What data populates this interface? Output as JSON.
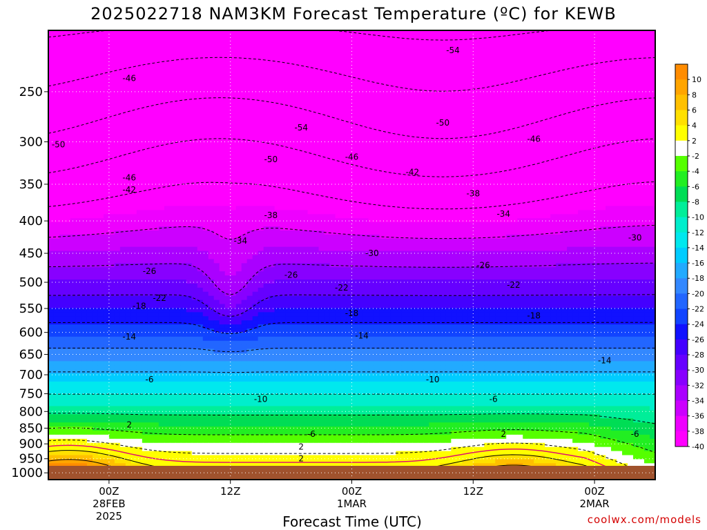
{
  "chart_data": {
    "type": "heatmap",
    "title": "2025022718 NAM3KM Forecast Temperature (ºC) for KEWB",
    "xlabel": "Forecast Time (UTC)",
    "ylabel": "",
    "credit": "coolwx.com/models",
    "y_axis": {
      "scale": "log-pressure",
      "reversed": true,
      "ticks": [
        250,
        300,
        350,
        400,
        450,
        500,
        550,
        600,
        650,
        700,
        750,
        800,
        850,
        900,
        950,
        1000
      ],
      "range": [
        200,
        1025
      ]
    },
    "x_axis": {
      "ticks": [
        {
          "line1": "00Z",
          "line2": "28FEB",
          "line3": "2025"
        },
        {
          "line1": "12Z",
          "line2": "",
          "line3": ""
        },
        {
          "line1": "00Z",
          "line2": "1MAR",
          "line3": ""
        },
        {
          "line1": "12Z",
          "line2": "",
          "line3": ""
        },
        {
          "line1": "00Z",
          "line2": "2MAR",
          "line3": ""
        }
      ],
      "range_hours": [
        -6,
        54
      ],
      "tick_hours": [
        0,
        12,
        24,
        36,
        48
      ]
    },
    "grid": true,
    "colorbar": {
      "levels": [
        10,
        8,
        6,
        4,
        2,
        -2,
        -4,
        -6,
        -8,
        -10,
        -12,
        -14,
        -16,
        -18,
        -20,
        -22,
        -24,
        -26,
        -28,
        -30,
        -32,
        -34,
        -36,
        -38,
        -40
      ],
      "colors": [
        "#ff8c00",
        "#ffa500",
        "#ffc000",
        "#ffe000",
        "#ffff00",
        "#ffffff",
        "#55ff00",
        "#22ee22",
        "#00dd55",
        "#00ee99",
        "#00eecc",
        "#00e8ee",
        "#00ccff",
        "#22aaff",
        "#3388ff",
        "#2266ff",
        "#1144ff",
        "#1111ff",
        "#4400ff",
        "#6600ff",
        "#8800ff",
        "#aa00ff",
        "#cc00ff",
        "#ee00ff",
        "#ff00ff"
      ]
    },
    "contour_labels": [
      {
        "text": "-54",
        "hour": 34,
        "pressure": 215
      },
      {
        "text": "-46",
        "hour": 2,
        "pressure": 238
      },
      {
        "text": "-54",
        "hour": 19,
        "pressure": 285
      },
      {
        "text": "-50",
        "hour": 33,
        "pressure": 280
      },
      {
        "text": "-46",
        "hour": 42,
        "pressure": 297
      },
      {
        "text": "-50",
        "hour": -5,
        "pressure": 303
      },
      {
        "text": "-50",
        "hour": 16,
        "pressure": 320
      },
      {
        "text": "-46",
        "hour": 24,
        "pressure": 317
      },
      {
        "text": "-42",
        "hour": 30,
        "pressure": 335
      },
      {
        "text": "-46",
        "hour": 2,
        "pressure": 342
      },
      {
        "text": "-42",
        "hour": 2,
        "pressure": 357
      },
      {
        "text": "-38",
        "hour": 36,
        "pressure": 362
      },
      {
        "text": "-38",
        "hour": 16,
        "pressure": 392
      },
      {
        "text": "-34",
        "hour": 39,
        "pressure": 390
      },
      {
        "text": "-34",
        "hour": 13,
        "pressure": 430
      },
      {
        "text": "-30",
        "hour": 52,
        "pressure": 425
      },
      {
        "text": "-30",
        "hour": 26,
        "pressure": 450
      },
      {
        "text": "-26",
        "hour": 37,
        "pressure": 470
      },
      {
        "text": "-26",
        "hour": 4,
        "pressure": 480
      },
      {
        "text": "-26",
        "hour": 18,
        "pressure": 487
      },
      {
        "text": "-22",
        "hour": 40,
        "pressure": 505
      },
      {
        "text": "-22",
        "hour": 23,
        "pressure": 510
      },
      {
        "text": "-22",
        "hour": 5,
        "pressure": 530
      },
      {
        "text": "-18",
        "hour": 3,
        "pressure": 545
      },
      {
        "text": "-18",
        "hour": 24,
        "pressure": 560
      },
      {
        "text": "-18",
        "hour": 42,
        "pressure": 565
      },
      {
        "text": "-14",
        "hour": 2,
        "pressure": 610
      },
      {
        "text": "-14",
        "hour": 25,
        "pressure": 607
      },
      {
        "text": "-14",
        "hour": 49,
        "pressure": 665
      },
      {
        "text": "-6",
        "hour": 4,
        "pressure": 712
      },
      {
        "text": "-10",
        "hour": 32,
        "pressure": 712
      },
      {
        "text": "-10",
        "hour": 15,
        "pressure": 765
      },
      {
        "text": "-6",
        "hour": 38,
        "pressure": 765
      },
      {
        "text": "2",
        "hour": 2,
        "pressure": 840
      },
      {
        "text": "-6",
        "hour": 20,
        "pressure": 868
      },
      {
        "text": "2",
        "hour": 39,
        "pressure": 868
      },
      {
        "text": "-6",
        "hour": 52,
        "pressure": 868
      },
      {
        "text": "2",
        "hour": 19,
        "pressure": 910
      },
      {
        "text": "2",
        "hour": 19,
        "pressure": 950
      }
    ]
  }
}
